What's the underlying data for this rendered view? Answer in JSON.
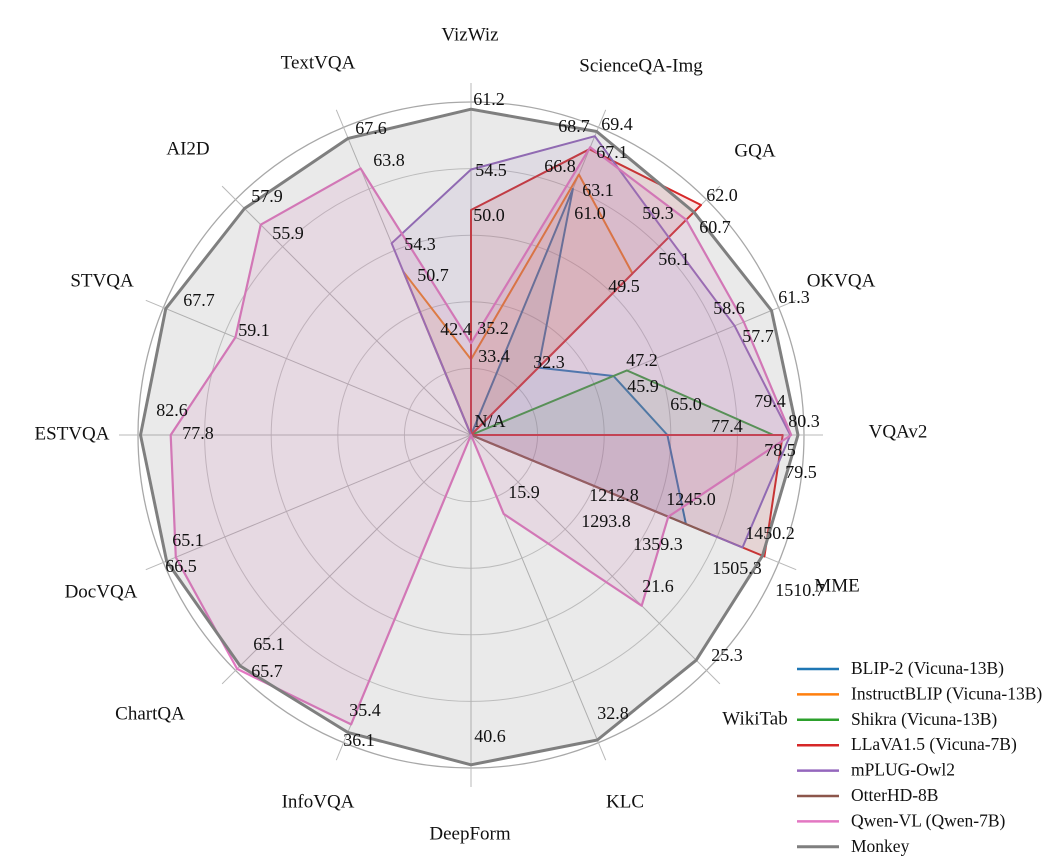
{
  "chart_data": {
    "type": "radar",
    "title": "",
    "grid": true,
    "legend_position": "lower right",
    "center_label": "N/A",
    "axes": [
      "VizWiz",
      "ScienceQA-Img",
      "GQA",
      "OKVQA",
      "VQAv2",
      "MME",
      "WikiTab",
      "KLC",
      "DeepForm",
      "InfoVQA",
      "ChartQA",
      "DocVQA",
      "ESTVQA",
      "STVQA",
      "AI2D",
      "TextVQA"
    ],
    "axis_ranges": {
      "VizWiz": [
        25,
        62
      ],
      "ScienceQA-Img": [
        25,
        70
      ],
      "GQA": [
        20,
        63
      ],
      "OKVQA": [
        32,
        62
      ],
      "VQAv2": [
        42,
        81
      ],
      "MME": [
        700,
        1550
      ],
      "WikiTab": [
        10,
        26
      ],
      "KLC": [
        10,
        33
      ],
      "DeepForm": [
        0,
        41
      ],
      "InfoVQA": [
        10,
        37
      ],
      "ChartQA": [
        20,
        66
      ],
      "DocVQA": [
        20,
        67
      ],
      "ESTVQA": [
        30,
        83
      ],
      "STVQA": [
        30,
        68
      ],
      "AI2D": [
        30,
        59
      ],
      "TextVQA": [
        30,
        69
      ]
    },
    "series": [
      {
        "name": "BLIP-2 (Vicuna-13B)",
        "color": "#1f77b4",
        "values": {
          "VizWiz": null,
          "ScienceQA-Img": 61.0,
          "GQA": 32.3,
          "OKVQA": 45.9,
          "VQAv2": 65.0,
          "MME": 1293.8,
          "WikiTab": null,
          "KLC": null,
          "DeepForm": null,
          "InfoVQA": null,
          "ChartQA": null,
          "DocVQA": null,
          "ESTVQA": null,
          "STVQA": null,
          "AI2D": null,
          "TextVQA": 42.4
        }
      },
      {
        "name": "InstructBLIP (Vicuna-13B)",
        "color": "#ff7f0e",
        "values": {
          "VizWiz": 33.4,
          "ScienceQA-Img": 63.1,
          "GQA": 49.5,
          "OKVQA": null,
          "VQAv2": null,
          "MME": 1212.8,
          "WikiTab": null,
          "KLC": null,
          "DeepForm": null,
          "InfoVQA": null,
          "ChartQA": null,
          "DocVQA": null,
          "ESTVQA": null,
          "STVQA": null,
          "AI2D": null,
          "TextVQA": 50.7
        }
      },
      {
        "name": "Shikra (Vicuna-13B)",
        "color": "#2ca02c",
        "values": {
          "VizWiz": null,
          "ScienceQA-Img": null,
          "GQA": null,
          "OKVQA": 47.2,
          "VQAv2": 77.4,
          "MME": null,
          "WikiTab": null,
          "KLC": null,
          "DeepForm": null,
          "InfoVQA": null,
          "ChartQA": null,
          "DocVQA": null,
          "ESTVQA": null,
          "STVQA": null,
          "AI2D": null,
          "TextVQA": null
        }
      },
      {
        "name": "LLaVA1.5 (Vicuna-7B)",
        "color": "#d62728",
        "values": {
          "VizWiz": 50.0,
          "ScienceQA-Img": 66.8,
          "GQA": 62.0,
          "OKVQA": null,
          "VQAv2": 78.5,
          "MME": 1510.7,
          "WikiTab": null,
          "KLC": null,
          "DeepForm": null,
          "InfoVQA": null,
          "ChartQA": null,
          "DocVQA": null,
          "ESTVQA": null,
          "STVQA": null,
          "AI2D": null,
          "TextVQA": null
        }
      },
      {
        "name": "mPLUG-Owl2",
        "color": "#9467bd",
        "values": {
          "VizWiz": 54.5,
          "ScienceQA-Img": 68.7,
          "GQA": 56.1,
          "OKVQA": 57.7,
          "VQAv2": 79.4,
          "MME": 1450.2,
          "WikiTab": null,
          "KLC": null,
          "DeepForm": null,
          "InfoVQA": null,
          "ChartQA": null,
          "DocVQA": null,
          "ESTVQA": null,
          "STVQA": null,
          "AI2D": null,
          "TextVQA": 54.3
        }
      },
      {
        "name": "OtterHD-8B",
        "color": "#8c564b",
        "values": {
          "VizWiz": null,
          "ScienceQA-Img": null,
          "GQA": null,
          "OKVQA": null,
          "VQAv2": null,
          "MME": 1359.3,
          "WikiTab": null,
          "KLC": null,
          "DeepForm": null,
          "InfoVQA": null,
          "ChartQA": null,
          "DocVQA": null,
          "ESTVQA": null,
          "STVQA": null,
          "AI2D": null,
          "TextVQA": null
        }
      },
      {
        "name": "Qwen-VL (Qwen-7B)",
        "color": "#e377c2",
        "values": {
          "VizWiz": 35.2,
          "ScienceQA-Img": 67.1,
          "GQA": 59.3,
          "OKVQA": 58.6,
          "VQAv2": 79.5,
          "MME": 1245.0,
          "WikiTab": 21.6,
          "KLC": 15.9,
          "DeepForm": null,
          "InfoVQA": 35.4,
          "ChartQA": 65.7,
          "DocVQA": 65.1,
          "ESTVQA": 77.8,
          "STVQA": 59.1,
          "AI2D": 55.9,
          "TextVQA": 63.8
        }
      },
      {
        "name": "Monkey",
        "color": "#7f7f7f",
        "values": {
          "VizWiz": 61.2,
          "ScienceQA-Img": 69.4,
          "GQA": 60.7,
          "OKVQA": 61.3,
          "VQAv2": 80.3,
          "MME": 1505.3,
          "WikiTab": 25.3,
          "KLC": 32.8,
          "DeepForm": 40.6,
          "InfoVQA": 36.1,
          "ChartQA": 65.1,
          "DocVQA": 66.5,
          "ESTVQA": 82.6,
          "STVQA": 67.7,
          "AI2D": 57.9,
          "TextVQA": 67.6
        }
      }
    ]
  }
}
